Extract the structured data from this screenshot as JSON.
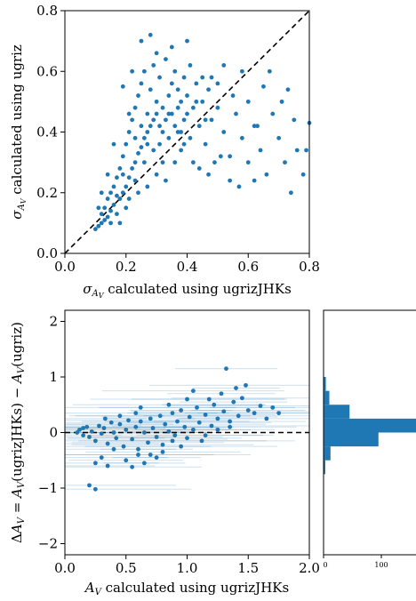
{
  "chart_data": [
    {
      "type": "scatter",
      "xlabel": "σ_{A_V} calculated using ugrizJHKs",
      "ylabel": "σ_{A_V} calculated using ugriz",
      "xlim": [
        0,
        0.8
      ],
      "ylim": [
        0,
        0.8
      ],
      "xticks": [
        "0.0",
        "0.2",
        "0.4",
        "0.6",
        "0.8"
      ],
      "yticks": [
        "0.0",
        "0.2",
        "0.4",
        "0.6",
        "0.8"
      ],
      "reference_line": "y = x (dashed black)",
      "color": "#1f77b4",
      "points": [
        [
          0.1,
          0.08
        ],
        [
          0.11,
          0.09
        ],
        [
          0.12,
          0.1
        ],
        [
          0.12,
          0.13
        ],
        [
          0.13,
          0.11
        ],
        [
          0.13,
          0.15
        ],
        [
          0.14,
          0.12
        ],
        [
          0.14,
          0.18
        ],
        [
          0.15,
          0.14
        ],
        [
          0.15,
          0.2
        ],
        [
          0.16,
          0.16
        ],
        [
          0.16,
          0.22
        ],
        [
          0.17,
          0.13
        ],
        [
          0.17,
          0.25
        ],
        [
          0.18,
          0.18
        ],
        [
          0.18,
          0.28
        ],
        [
          0.19,
          0.2
        ],
        [
          0.19,
          0.32
        ],
        [
          0.2,
          0.22
        ],
        [
          0.2,
          0.36
        ],
        [
          0.21,
          0.25
        ],
        [
          0.21,
          0.4
        ],
        [
          0.22,
          0.28
        ],
        [
          0.22,
          0.44
        ],
        [
          0.23,
          0.3
        ],
        [
          0.23,
          0.48
        ],
        [
          0.24,
          0.33
        ],
        [
          0.24,
          0.52
        ],
        [
          0.25,
          0.35
        ],
        [
          0.25,
          0.56
        ],
        [
          0.26,
          0.38
        ],
        [
          0.26,
          0.6
        ],
        [
          0.27,
          0.4
        ],
        [
          0.27,
          0.46
        ],
        [
          0.28,
          0.42
        ],
        [
          0.28,
          0.54
        ],
        [
          0.29,
          0.44
        ],
        [
          0.29,
          0.62
        ],
        [
          0.3,
          0.46
        ],
        [
          0.3,
          0.5
        ],
        [
          0.31,
          0.36
        ],
        [
          0.31,
          0.58
        ],
        [
          0.32,
          0.4
        ],
        [
          0.32,
          0.48
        ],
        [
          0.33,
          0.44
        ],
        [
          0.33,
          0.64
        ],
        [
          0.34,
          0.38
        ],
        [
          0.34,
          0.52
        ],
        [
          0.35,
          0.46
        ],
        [
          0.35,
          0.56
        ],
        [
          0.36,
          0.42
        ],
        [
          0.36,
          0.6
        ],
        [
          0.37,
          0.48
        ],
        [
          0.37,
          0.54
        ],
        [
          0.38,
          0.5
        ],
        [
          0.38,
          0.4
        ],
        [
          0.39,
          0.44
        ],
        [
          0.39,
          0.58
        ],
        [
          0.4,
          0.46
        ],
        [
          0.4,
          0.52
        ],
        [
          0.41,
          0.38
        ],
        [
          0.42,
          0.48
        ],
        [
          0.43,
          0.56
        ],
        [
          0.44,
          0.42
        ],
        [
          0.45,
          0.5
        ],
        [
          0.46,
          0.36
        ],
        [
          0.47,
          0.54
        ],
        [
          0.48,
          0.44
        ],
        [
          0.49,
          0.3
        ],
        [
          0.5,
          0.48
        ],
        [
          0.52,
          0.4
        ],
        [
          0.54,
          0.32
        ],
        [
          0.56,
          0.46
        ],
        [
          0.58,
          0.38
        ],
        [
          0.6,
          0.3
        ],
        [
          0.62,
          0.42
        ],
        [
          0.64,
          0.34
        ],
        [
          0.66,
          0.26
        ],
        [
          0.68,
          0.46
        ],
        [
          0.7,
          0.38
        ],
        [
          0.72,
          0.3
        ],
        [
          0.74,
          0.2
        ],
        [
          0.76,
          0.34
        ],
        [
          0.78,
          0.26
        ],
        [
          0.8,
          0.43
        ],
        [
          0.73,
          0.54
        ],
        [
          0.63,
          0.42
        ],
        [
          0.57,
          0.22
        ],
        [
          0.22,
          0.6
        ],
        [
          0.25,
          0.7
        ],
        [
          0.3,
          0.66
        ],
        [
          0.28,
          0.72
        ],
        [
          0.35,
          0.68
        ],
        [
          0.4,
          0.7
        ],
        [
          0.19,
          0.55
        ],
        [
          0.16,
          0.36
        ],
        [
          0.14,
          0.26
        ],
        [
          0.12,
          0.2
        ],
        [
          0.11,
          0.15
        ],
        [
          0.24,
          0.2
        ],
        [
          0.27,
          0.22
        ],
        [
          0.3,
          0.26
        ],
        [
          0.33,
          0.24
        ],
        [
          0.36,
          0.3
        ],
        [
          0.2,
          0.15
        ],
        [
          0.18,
          0.1
        ],
        [
          0.26,
          0.3
        ],
        [
          0.29,
          0.34
        ],
        [
          0.32,
          0.3
        ],
        [
          0.38,
          0.34
        ],
        [
          0.42,
          0.3
        ],
        [
          0.44,
          0.28
        ],
        [
          0.46,
          0.44
        ],
        [
          0.5,
          0.56
        ],
        [
          0.52,
          0.62
        ],
        [
          0.48,
          0.58
        ],
        [
          0.55,
          0.52
        ],
        [
          0.6,
          0.5
        ],
        [
          0.65,
          0.55
        ],
        [
          0.58,
          0.6
        ],
        [
          0.21,
          0.46
        ],
        [
          0.23,
          0.38
        ],
        [
          0.25,
          0.42
        ],
        [
          0.27,
          0.36
        ],
        [
          0.31,
          0.42
        ],
        [
          0.34,
          0.46
        ],
        [
          0.37,
          0.4
        ],
        [
          0.39,
          0.36
        ],
        [
          0.15,
          0.1
        ],
        [
          0.17,
          0.19
        ],
        [
          0.19,
          0.26
        ],
        [
          0.21,
          0.18
        ],
        [
          0.23,
          0.24
        ],
        [
          0.41,
          0.62
        ],
        [
          0.43,
          0.5
        ],
        [
          0.45,
          0.58
        ],
        [
          0.67,
          0.6
        ],
        [
          0.71,
          0.5
        ],
        [
          0.75,
          0.44
        ],
        [
          0.79,
          0.34
        ],
        [
          0.62,
          0.24
        ],
        [
          0.54,
          0.24
        ],
        [
          0.47,
          0.26
        ],
        [
          0.51,
          0.32
        ]
      ]
    },
    {
      "type": "scatter",
      "xlabel": "A_V calculated using ugrizJHKs",
      "ylabel": "ΔA_V = A_V(ugrizJHKs) − A_V(ugriz)",
      "xlim": [
        0,
        2.0
      ],
      "ylim": [
        -2.2,
        2.2
      ],
      "xticks": [
        "0.0",
        "0.5",
        "1.0",
        "1.5",
        "2.0"
      ],
      "yticks": [
        "−2",
        "−1",
        "0",
        "1",
        "2"
      ],
      "reference_line": "y = 0 (dashed black)",
      "error_bars": "horizontal",
      "color": "#1f77b4",
      "points": [
        [
          0.1,
          0.0
        ],
        [
          0.12,
          0.05
        ],
        [
          0.15,
          -0.05
        ],
        [
          0.18,
          0.1
        ],
        [
          0.2,
          -0.08
        ],
        [
          0.22,
          0.02
        ],
        [
          0.25,
          -0.15
        ],
        [
          0.28,
          0.12
        ],
        [
          0.3,
          -0.02
        ],
        [
          0.32,
          0.08
        ],
        [
          0.35,
          -0.2
        ],
        [
          0.38,
          0.18
        ],
        [
          0.4,
          0.0
        ],
        [
          0.42,
          -0.1
        ],
        [
          0.45,
          0.15
        ],
        [
          0.48,
          -0.25
        ],
        [
          0.5,
          0.05
        ],
        [
          0.52,
          0.22
        ],
        [
          0.55,
          -0.12
        ],
        [
          0.58,
          0.1
        ],
        [
          0.6,
          -0.3
        ],
        [
          0.62,
          0.2
        ],
        [
          0.65,
          0.0
        ],
        [
          0.68,
          -0.18
        ],
        [
          0.7,
          0.25
        ],
        [
          0.72,
          0.08
        ],
        [
          0.75,
          -0.08
        ],
        [
          0.78,
          0.3
        ],
        [
          0.8,
          -0.22
        ],
        [
          0.82,
          0.15
        ],
        [
          0.85,
          0.02
        ],
        [
          0.88,
          0.35
        ],
        [
          0.9,
          -0.05
        ],
        [
          0.92,
          0.2
        ],
        [
          0.95,
          0.4
        ],
        [
          0.98,
          0.1
        ],
        [
          1.0,
          -0.1
        ],
        [
          1.02,
          0.28
        ],
        [
          1.05,
          0.05
        ],
        [
          1.08,
          0.45
        ],
        [
          1.1,
          0.18
        ],
        [
          1.12,
          -0.15
        ],
        [
          1.15,
          0.32
        ],
        [
          1.18,
          0.6
        ],
        [
          1.2,
          0.12
        ],
        [
          1.22,
          0.5
        ],
        [
          1.25,
          0.25
        ],
        [
          1.28,
          0.7
        ],
        [
          1.3,
          0.38
        ],
        [
          1.32,
          1.15
        ],
        [
          1.35,
          0.2
        ],
        [
          1.38,
          0.55
        ],
        [
          1.4,
          0.8
        ],
        [
          1.42,
          0.3
        ],
        [
          1.45,
          0.62
        ],
        [
          1.5,
          0.4
        ],
        [
          1.55,
          0.35
        ],
        [
          1.6,
          0.48
        ],
        [
          1.65,
          0.25
        ],
        [
          1.7,
          0.45
        ],
        [
          1.75,
          0.35
        ],
        [
          0.25,
          -0.55
        ],
        [
          0.3,
          -0.45
        ],
        [
          0.35,
          -0.6
        ],
        [
          0.5,
          -0.5
        ],
        [
          0.55,
          -0.62
        ],
        [
          0.6,
          -0.4
        ],
        [
          0.65,
          -0.55
        ],
        [
          0.75,
          -0.45
        ],
        [
          0.8,
          -0.35
        ],
        [
          0.2,
          -0.95
        ],
        [
          0.25,
          -1.02
        ],
        [
          0.4,
          -0.3
        ],
        [
          0.45,
          0.3
        ],
        [
          0.85,
          0.5
        ],
        [
          1.0,
          0.6
        ],
        [
          0.7,
          -0.4
        ],
        [
          1.15,
          -0.05
        ],
        [
          1.25,
          0.05
        ],
        [
          0.95,
          -0.25
        ],
        [
          0.15,
          0.08
        ],
        [
          0.33,
          0.25
        ],
        [
          0.58,
          0.35
        ],
        [
          0.88,
          -0.15
        ],
        [
          1.05,
          0.75
        ],
        [
          1.35,
          0.1
        ],
        [
          1.48,
          0.85
        ],
        [
          0.62,
          0.45
        ]
      ]
    },
    {
      "type": "bar",
      "orientation": "horizontal",
      "xticks": [
        "0",
        "100"
      ],
      "color": "#1f77b4",
      "bins": [
        {
          "y0": -0.75,
          "y1": -0.5,
          "count": 3
        },
        {
          "y0": -0.5,
          "y1": -0.25,
          "count": 12
        },
        {
          "y0": -0.25,
          "y1": 0.0,
          "count": 95
        },
        {
          "y0": 0.0,
          "y1": 0.25,
          "count": 165
        },
        {
          "y0": 0.25,
          "y1": 0.5,
          "count": 45
        },
        {
          "y0": 0.5,
          "y1": 0.75,
          "count": 10
        },
        {
          "y0": 0.75,
          "y1": 1.0,
          "count": 4
        }
      ]
    }
  ]
}
